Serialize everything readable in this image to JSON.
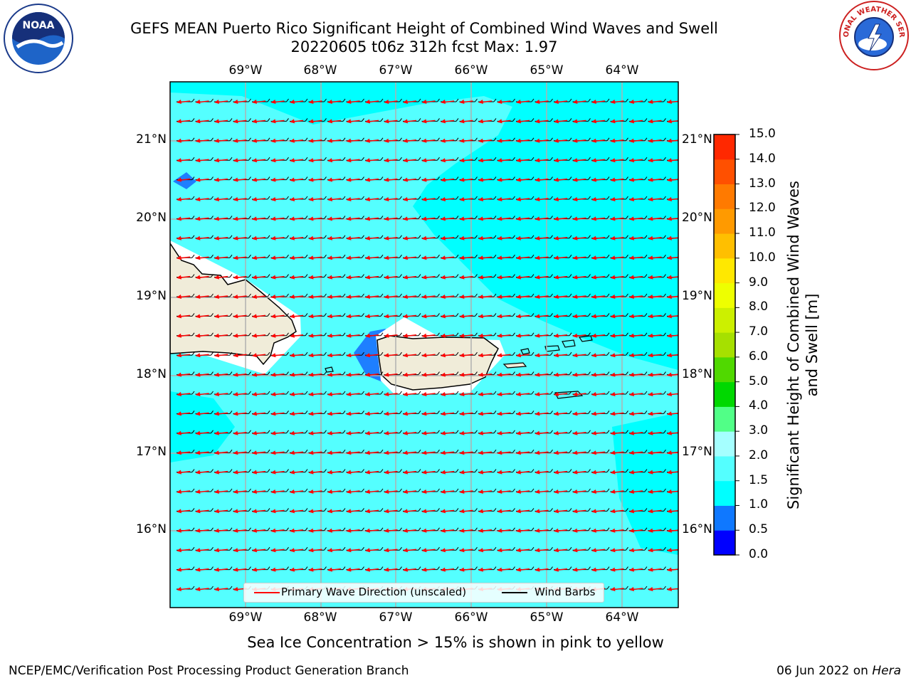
{
  "title_line1": "GEFS MEAN Puerto Rico Significant Height of Combined Wind Waves and Swell",
  "title_line2": "20220605 t06z 312h fcst   Max: 1.97",
  "logos": {
    "left": {
      "icon": "noaa-logo",
      "text": "NOAA"
    },
    "right": {
      "icon": "nws-logo",
      "text": "NATIONAL WEATHER SERVICE"
    }
  },
  "map": {
    "longitude_labels": [
      "69°W",
      "68°W",
      "67°W",
      "66°W",
      "65°W",
      "64°W"
    ],
    "latitude_labels": [
      "21°N",
      "20°N",
      "19°N",
      "18°N",
      "17°N",
      "16°N"
    ],
    "colors": {
      "ocean_base": "#00ffff",
      "ocean_light": "#54ffff",
      "low_wave": "#1e7fff",
      "land": "#f0ecd9",
      "gridline": "#b0b0b0",
      "wave_arrow": "#ff0000",
      "wind_barb": "#000000"
    }
  },
  "colorbar": {
    "title": "Significant Height of Combined Wind Waves and Swell [m]",
    "tick_labels": [
      "0.0",
      "0.5",
      "1.0",
      "1.5",
      "2.0",
      "3.0",
      "4.0",
      "5.0",
      "6.0",
      "7.0",
      "8.0",
      "9.0",
      "10.0",
      "11.0",
      "12.0",
      "13.0",
      "14.0",
      "15.0"
    ],
    "colors": [
      "#0000ff",
      "#0f78ff",
      "#00ffff",
      "#54ffff",
      "#a5ffff",
      "#51ff87",
      "#00d800",
      "#50d900",
      "#a6e000",
      "#ccf000",
      "#eeff00",
      "#ffe800",
      "#ffbf00",
      "#ff9a00",
      "#ff7a00",
      "#ff5000",
      "#ff2800"
    ]
  },
  "legend": {
    "wave_direction": "Primary Wave Direction (unscaled)",
    "wind_barbs": "Wind Barbs"
  },
  "note": "Sea Ice Concentration > 15% is shown in pink to yellow",
  "footer_left": "NCEP/EMC/Verification Post Processing Product Generation Branch",
  "footer_right_prefix": "06 Jun 2022 on ",
  "footer_right_host": "Hera"
}
